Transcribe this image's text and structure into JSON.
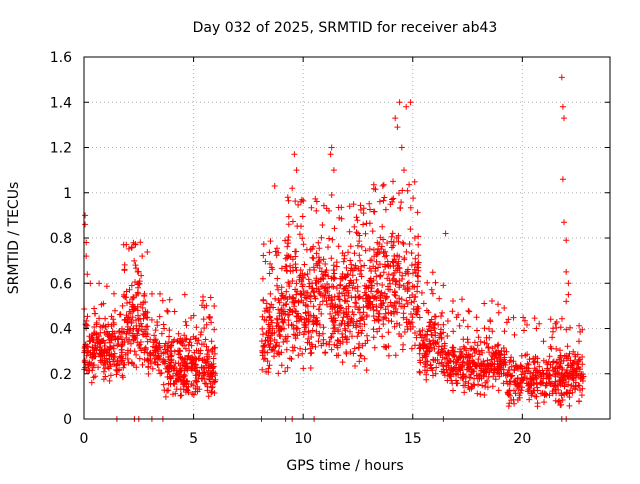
{
  "chart_data": {
    "type": "scatter",
    "title": "Day 032 of 2025, SRMTID for receiver ab43",
    "xlabel": "GPS time / hours",
    "ylabel": "SRMTID / TECUs",
    "xlim": [
      0,
      24
    ],
    "ylim": [
      0,
      1.6
    ],
    "x_ticks": [
      0,
      5,
      10,
      15,
      20
    ],
    "x_tick_labels": [
      "0",
      "5",
      "10",
      "15",
      "20"
    ],
    "y_ticks": [
      0,
      0.2,
      0.4,
      0.6,
      0.8,
      1,
      1.2,
      1.4,
      1.6
    ],
    "y_tick_labels": [
      "0",
      "0.2",
      "0.4",
      "0.6",
      "0.8",
      "1",
      "1.2",
      "1.4",
      "1.6"
    ],
    "grid": true,
    "marker": "+",
    "marker_color": "#ff0000",
    "series_name": "SRMTID",
    "zero_points_x": [
      1.5,
      2.3,
      2.5,
      3.1,
      3.6,
      8.1,
      9.2,
      9.5,
      10.5,
      16.4,
      21.8,
      22.0
    ],
    "density_bands": [
      {
        "x": [
          0.0,
          1.8
        ],
        "n": 240,
        "lo": 0.15,
        "hi": 0.45
      },
      {
        "x": [
          1.8,
          2.9
        ],
        "n": 150,
        "lo": 0.2,
        "hi": 0.65
      },
      {
        "x": [
          2.9,
          3.6
        ],
        "n": 60,
        "lo": 0.15,
        "hi": 0.45
      },
      {
        "x": [
          3.6,
          6.0
        ],
        "n": 320,
        "lo": 0.08,
        "hi": 0.4
      },
      {
        "x": [
          8.1,
          9.2
        ],
        "n": 140,
        "lo": 0.15,
        "hi": 0.65
      },
      {
        "x": [
          9.2,
          11.4
        ],
        "n": 310,
        "lo": 0.2,
        "hi": 0.85
      },
      {
        "x": [
          11.4,
          13.0
        ],
        "n": 230,
        "lo": 0.2,
        "hi": 0.8
      },
      {
        "x": [
          13.0,
          15.3
        ],
        "n": 300,
        "lo": 0.25,
        "hi": 0.9
      },
      {
        "x": [
          15.3,
          16.4
        ],
        "n": 130,
        "lo": 0.15,
        "hi": 0.5
      },
      {
        "x": [
          16.4,
          19.3
        ],
        "n": 330,
        "lo": 0.1,
        "hi": 0.38
      },
      {
        "x": [
          19.3,
          21.7
        ],
        "n": 240,
        "lo": 0.05,
        "hi": 0.3
      },
      {
        "x": [
          21.7,
          22.8
        ],
        "n": 130,
        "lo": 0.05,
        "hi": 0.32
      }
    ],
    "notable_points": [
      {
        "x": 0.05,
        "y": 0.9
      },
      {
        "x": 0.05,
        "y": 0.86
      },
      {
        "x": 0.1,
        "y": 0.78
      },
      {
        "x": 0.1,
        "y": 0.72
      },
      {
        "x": 0.15,
        "y": 0.64
      },
      {
        "x": 2.35,
        "y": 0.68
      },
      {
        "x": 2.45,
        "y": 0.65
      },
      {
        "x": 2.5,
        "y": 0.6
      },
      {
        "x": 2.35,
        "y": 0.77
      },
      {
        "x": 4.6,
        "y": 0.55
      },
      {
        "x": 8.7,
        "y": 1.03
      },
      {
        "x": 9.3,
        "y": 0.98
      },
      {
        "x": 9.6,
        "y": 1.17
      },
      {
        "x": 9.7,
        "y": 1.1
      },
      {
        "x": 9.5,
        "y": 1.02
      },
      {
        "x": 9.9,
        "y": 0.96
      },
      {
        "x": 10.6,
        "y": 0.92
      },
      {
        "x": 11.3,
        "y": 1.2
      },
      {
        "x": 11.25,
        "y": 1.17
      },
      {
        "x": 11.4,
        "y": 1.1
      },
      {
        "x": 12.3,
        "y": 0.95
      },
      {
        "x": 14.1,
        "y": 1.05
      },
      {
        "x": 14.3,
        "y": 1.29
      },
      {
        "x": 14.4,
        "y": 1.4
      },
      {
        "x": 14.5,
        "y": 1.2
      },
      {
        "x": 14.7,
        "y": 1.38
      },
      {
        "x": 14.9,
        "y": 1.4
      },
      {
        "x": 14.2,
        "y": 1.33
      },
      {
        "x": 14.6,
        "y": 1.1
      },
      {
        "x": 15.1,
        "y": 0.8
      },
      {
        "x": 16.5,
        "y": 0.82
      },
      {
        "x": 21.8,
        "y": 1.51
      },
      {
        "x": 21.85,
        "y": 1.38
      },
      {
        "x": 21.9,
        "y": 1.33
      },
      {
        "x": 21.85,
        "y": 1.06
      },
      {
        "x": 21.9,
        "y": 0.87
      },
      {
        "x": 22.0,
        "y": 0.79
      },
      {
        "x": 22.0,
        "y": 0.65
      },
      {
        "x": 22.1,
        "y": 0.6
      },
      {
        "x": 22.1,
        "y": 0.55
      },
      {
        "x": 22.0,
        "y": 0.52
      }
    ]
  }
}
